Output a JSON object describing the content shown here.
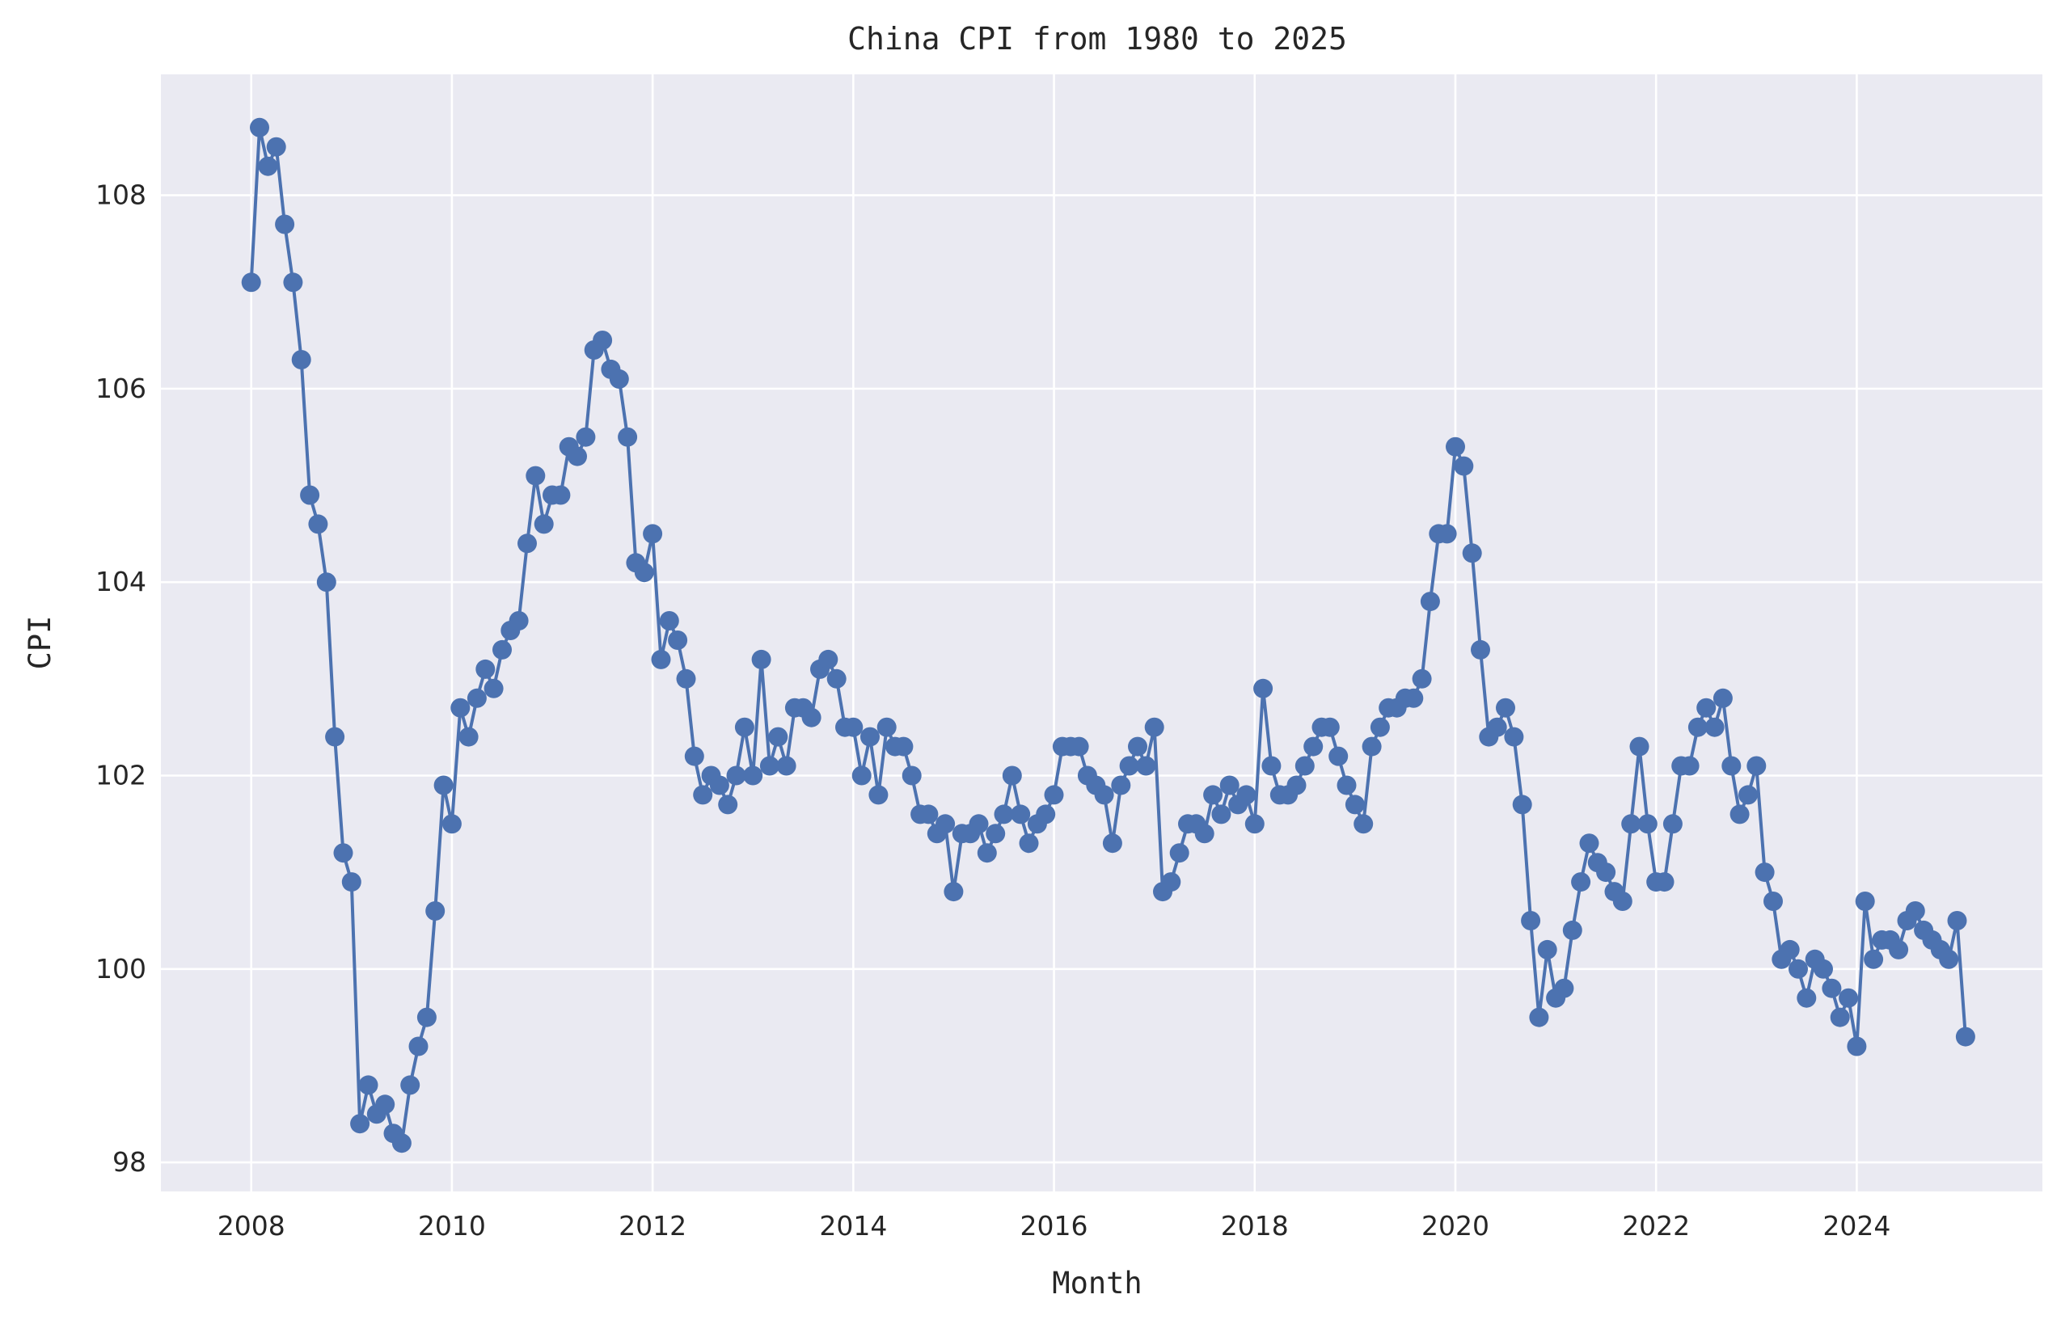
{
  "chart_data": {
    "type": "line",
    "title": "China CPI from 1980 to 2025",
    "xlabel": "Month",
    "ylabel": "CPI",
    "xlim": [
      2007.1,
      2025.85
    ],
    "ylim": [
      97.7,
      109.25
    ],
    "x_ticks": [
      "2008",
      "2010",
      "2012",
      "2014",
      "2016",
      "2018",
      "2020",
      "2022",
      "2024"
    ],
    "y_ticks": [
      "98",
      "100",
      "102",
      "104",
      "106",
      "108"
    ],
    "grid": true,
    "style": {
      "background": "#eaeaf2",
      "grid_color": "#ffffff",
      "line_color": "#4c72b0",
      "marker": "circle"
    },
    "series": [
      {
        "start": "2008-01",
        "frequency": "monthly",
        "values": [
          107.1,
          108.7,
          108.3,
          108.5,
          107.7,
          107.1,
          106.3,
          104.9,
          104.6,
          104.0,
          102.4,
          101.2,
          100.9,
          98.4,
          98.8,
          98.5,
          98.6,
          98.3,
          98.2,
          98.8,
          99.2,
          99.5,
          100.6,
          101.9,
          101.5,
          102.7,
          102.4,
          102.8,
          103.1,
          102.9,
          103.3,
          103.5,
          103.6,
          104.4,
          105.1,
          104.6,
          104.9,
          104.9,
          105.4,
          105.3,
          105.5,
          106.4,
          106.5,
          106.2,
          106.1,
          105.5,
          104.2,
          104.1,
          104.5,
          103.2,
          103.6,
          103.4,
          103.0,
          102.2,
          101.8,
          102.0,
          101.9,
          101.7,
          102.0,
          102.5,
          102.0,
          103.2,
          102.1,
          102.4,
          102.1,
          102.7,
          102.7,
          102.6,
          103.1,
          103.2,
          103.0,
          102.5,
          102.5,
          102.0,
          102.4,
          101.8,
          102.5,
          102.3,
          102.3,
          102.0,
          101.6,
          101.6,
          101.4,
          101.5,
          100.8,
          101.4,
          101.4,
          101.5,
          101.2,
          101.4,
          101.6,
          102.0,
          101.6,
          101.3,
          101.5,
          101.6,
          101.8,
          102.3,
          102.3,
          102.3,
          102.0,
          101.9,
          101.8,
          101.3,
          101.9,
          102.1,
          102.3,
          102.1,
          102.5,
          100.8,
          100.9,
          101.2,
          101.5,
          101.5,
          101.4,
          101.8,
          101.6,
          101.9,
          101.7,
          101.8,
          101.5,
          102.9,
          102.1,
          101.8,
          101.8,
          101.9,
          102.1,
          102.3,
          102.5,
          102.5,
          102.2,
          101.9,
          101.7,
          101.5,
          102.3,
          102.5,
          102.7,
          102.7,
          102.8,
          102.8,
          103.0,
          103.8,
          104.5,
          104.5,
          105.4,
          105.2,
          104.3,
          103.3,
          102.4,
          102.5,
          102.7,
          102.4,
          101.7,
          100.5,
          99.5,
          100.2,
          99.7,
          99.8,
          100.4,
          100.9,
          101.3,
          101.1,
          101.0,
          100.8,
          100.7,
          101.5,
          102.3,
          101.5,
          100.9,
          100.9,
          101.5,
          102.1,
          102.1,
          102.5,
          102.7,
          102.5,
          102.8,
          102.1,
          101.6,
          101.8,
          102.1,
          101.0,
          100.7,
          100.1,
          100.2,
          100.0,
          99.7,
          100.1,
          100.0,
          99.8,
          99.5,
          99.7,
          99.2,
          100.7,
          100.1,
          100.3,
          100.3,
          100.2,
          100.5,
          100.6,
          100.4,
          100.3,
          100.2,
          100.1,
          100.5,
          99.3
        ]
      }
    ]
  }
}
